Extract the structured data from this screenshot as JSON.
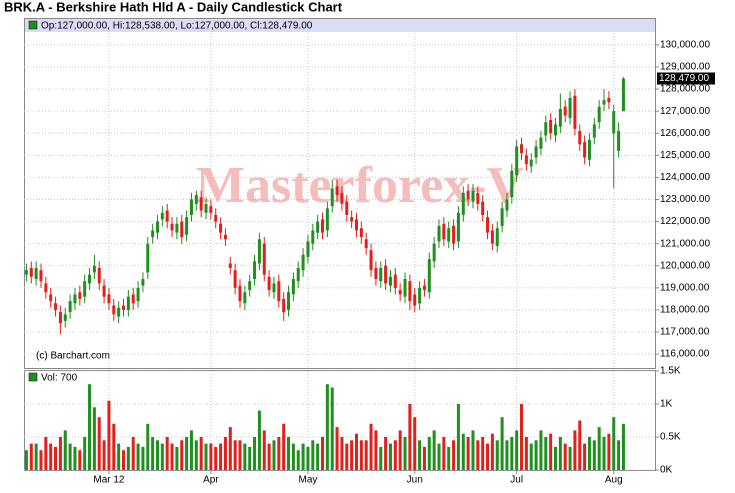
{
  "chart_data": [
    {
      "type": "candlestick",
      "title": "BRK.A - Berkshire Hath Hld A - Daily Candlestick Chart",
      "legend_text": "Op:127,000.00, Hi:128,538.00, Lo:127,000.00, Cl:128,479.00",
      "watermark": "Masterforex-V",
      "source": "(c) Barchart.com",
      "up_color": "#1f8f1f",
      "down_color": "#e0201a",
      "open": [
        119600,
        119900,
        119400,
        119800,
        119200,
        118700,
        118300,
        117900,
        117500,
        117900,
        118300,
        118800,
        118600,
        119200,
        119700,
        119900,
        119100,
        118700,
        118200,
        117700,
        118200,
        118000,
        118700,
        118400,
        119100,
        119700,
        121300,
        121500,
        122100,
        122500,
        121900,
        121500,
        122000,
        121400,
        122300,
        122800,
        123100,
        122400,
        122700,
        122300,
        121900,
        121400,
        120100,
        119800,
        119100,
        118300,
        118900,
        119400,
        120100,
        121000,
        119500,
        118800,
        119300,
        118500,
        118000,
        118700,
        119300,
        119800,
        120400,
        121000,
        121500,
        122100,
        121600,
        122700,
        123600,
        123300,
        122900,
        122200,
        122100,
        121700,
        121200,
        120700,
        119900,
        119300,
        120000,
        119100,
        119600,
        118900,
        118600,
        119300,
        118700,
        118300,
        119100,
        118800,
        120200,
        121100,
        121900,
        121100,
        121800,
        121100,
        122300,
        123400,
        122900,
        123300,
        122900,
        122200,
        121600,
        120900,
        121800,
        122500,
        123100,
        124100,
        125500,
        125000,
        124500,
        124900,
        125300,
        125900,
        126600,
        125900,
        126300,
        127200,
        126700,
        127700,
        126100,
        125600,
        124800,
        125800,
        126500,
        127300,
        127600,
        126000,
        125200,
        127000
      ],
      "high": [
        120100,
        120200,
        120200,
        120100,
        119500,
        119000,
        118600,
        118200,
        118100,
        118700,
        119000,
        119100,
        119600,
        119900,
        120500,
        120200,
        119400,
        119000,
        118500,
        118400,
        118500,
        118900,
        119000,
        119300,
        119700,
        121300,
        121900,
        122300,
        122700,
        122800,
        122200,
        122200,
        122300,
        122500,
        123300,
        123400,
        123400,
        123100,
        123000,
        122600,
        122200,
        121700,
        120400,
        120100,
        119400,
        119100,
        119600,
        120500,
        121500,
        121300,
        119800,
        119500,
        119600,
        118800,
        119100,
        119700,
        120200,
        120800,
        121400,
        121900,
        122300,
        122400,
        122900,
        123900,
        123900,
        123600,
        123200,
        122500,
        122400,
        122000,
        121500,
        121000,
        120200,
        120200,
        120300,
        119800,
        119900,
        119200,
        119700,
        119600,
        119000,
        119300,
        119400,
        120600,
        121300,
        122100,
        122200,
        122000,
        122100,
        122700,
        123600,
        123700,
        123700,
        123600,
        123200,
        122500,
        121900,
        122000,
        122900,
        123300,
        124600,
        125700,
        125800,
        125300,
        125100,
        125700,
        126100,
        126800,
        126900,
        126700,
        127800,
        127500,
        127900,
        128000,
        126400,
        125900,
        126000,
        126700,
        127500,
        128000,
        127900,
        127300,
        126500,
        128538
      ],
      "low": [
        119300,
        119200,
        119100,
        119000,
        118500,
        118100,
        117700,
        116900,
        117200,
        117600,
        118000,
        118200,
        118300,
        118900,
        119400,
        118900,
        118300,
        118000,
        117500,
        117400,
        117700,
        117700,
        118000,
        118100,
        118800,
        119400,
        121000,
        121200,
        121800,
        121700,
        121300,
        121200,
        121000,
        121100,
        122000,
        122500,
        122200,
        122100,
        122100,
        121700,
        121200,
        120900,
        119600,
        118700,
        118100,
        118000,
        118600,
        119100,
        119800,
        119300,
        118600,
        118500,
        118100,
        117500,
        117700,
        118400,
        119000,
        119500,
        120100,
        120700,
        121200,
        121200,
        121300,
        122400,
        122900,
        122500,
        122000,
        121700,
        121300,
        121000,
        120500,
        119500,
        119100,
        119000,
        118900,
        118800,
        118700,
        118400,
        118300,
        118000,
        117900,
        118000,
        118600,
        118500,
        119900,
        120800,
        120900,
        120800,
        120700,
        120800,
        122000,
        122700,
        122600,
        122500,
        122000,
        121200,
        120700,
        120600,
        121500,
        122200,
        122800,
        123800,
        124800,
        124300,
        124200,
        124600,
        125000,
        125600,
        125700,
        125600,
        126000,
        126500,
        126400,
        125900,
        125200,
        124600,
        124500,
        125500,
        126200,
        127000,
        127100,
        123500,
        124900,
        127000
      ],
      "close": [
        119800,
        119500,
        119900,
        119300,
        118800,
        118400,
        118000,
        117400,
        117800,
        118400,
        118700,
        118500,
        119300,
        119600,
        120000,
        119200,
        118600,
        118300,
        117800,
        118100,
        118000,
        118600,
        118300,
        119000,
        119400,
        121000,
        121600,
        122000,
        122400,
        122000,
        121600,
        121900,
        121300,
        122200,
        123000,
        123200,
        122500,
        122800,
        122400,
        122000,
        121500,
        121200,
        119900,
        119000,
        118400,
        118800,
        119300,
        120200,
        121200,
        119600,
        118900,
        119200,
        118400,
        117900,
        118800,
        119400,
        119900,
        120500,
        121100,
        121600,
        122000,
        121500,
        122600,
        123500,
        123200,
        122800,
        122300,
        122000,
        121600,
        121300,
        120800,
        119800,
        119400,
        119900,
        119200,
        119500,
        119000,
        118700,
        119400,
        118400,
        118200,
        119000,
        118900,
        120300,
        121000,
        121800,
        121200,
        121700,
        121000,
        122400,
        123300,
        123000,
        123400,
        122800,
        122300,
        121500,
        121000,
        121700,
        122600,
        123000,
        124300,
        125400,
        125100,
        124600,
        124800,
        125400,
        125800,
        126500,
        126000,
        126400,
        127100,
        126800,
        127600,
        126200,
        125500,
        124900,
        125700,
        126400,
        127200,
        127500,
        127400,
        127000,
        126100,
        128479
      ],
      "last_price": {
        "value": 128479,
        "label": "128,479.00"
      },
      "xlim": [
        -0.5,
        129.5
      ],
      "ylim": [
        115370,
        130540
      ],
      "yticks": [
        {
          "value": 116000,
          "label": "116,000.00"
        },
        {
          "value": 117000,
          "label": "117,000.00"
        },
        {
          "value": 118000,
          "label": "118,000.00"
        },
        {
          "value": 119000,
          "label": "119,000.00"
        },
        {
          "value": 120000,
          "label": "120,000.00"
        },
        {
          "value": 121000,
          "label": "121,000.00"
        },
        {
          "value": 122000,
          "label": "122,000.00"
        },
        {
          "value": 123000,
          "label": "123,000.00"
        },
        {
          "value": 124000,
          "label": "124,000.00"
        },
        {
          "value": 125000,
          "label": "125,000.00"
        },
        {
          "value": 126000,
          "label": "126,000.00"
        },
        {
          "value": 127000,
          "label": "127,000.00"
        },
        {
          "value": 128000,
          "label": "128,000.00"
        },
        {
          "value": 129000,
          "label": "129,000.00"
        },
        {
          "value": 130000,
          "label": "130,000.00"
        }
      ],
      "grid": true
    },
    {
      "type": "bar",
      "legend_text": "Vol: 700",
      "values": [
        300,
        400,
        400,
        300,
        500,
        400,
        350,
        500,
        600,
        400,
        350,
        300,
        500,
        1300,
        950,
        800,
        450,
        1050,
        700,
        400,
        300,
        350,
        500,
        400,
        350,
        700,
        500,
        450,
        400,
        500,
        400,
        350,
        450,
        500,
        600,
        450,
        500,
        400,
        400,
        350,
        400,
        500,
        650,
        450,
        450,
        400,
        350,
        500,
        900,
        600,
        400,
        450,
        500,
        700,
        500,
        400,
        300,
        400,
        350,
        450,
        400,
        500,
        1300,
        1250,
        650,
        500,
        400,
        450,
        550,
        450,
        450,
        700,
        600,
        350,
        500,
        400,
        450,
        600,
        500,
        1000,
        800,
        450,
        350,
        500,
        600,
        400,
        500,
        350,
        450,
        1000,
        550,
        500,
        600,
        450,
        500,
        400,
        550,
        450,
        800,
        450,
        500,
        600,
        1000,
        500,
        400,
        450,
        600,
        500,
        550,
        350,
        500,
        400,
        350,
        600,
        750,
        400,
        500,
        450,
        650,
        500,
        550,
        800,
        450,
        700
      ],
      "xlim": [
        -0.5,
        129.5
      ],
      "xticks": [
        {
          "value": 17,
          "label": "Mar 12"
        },
        {
          "value": 38,
          "label": "Apr"
        },
        {
          "value": 58,
          "label": "May"
        },
        {
          "value": 80,
          "label": "Jun"
        },
        {
          "value": 101,
          "label": "Jul"
        },
        {
          "value": 121,
          "label": "Aug"
        }
      ],
      "ylim": [
        0,
        1500
      ],
      "yticks": [
        {
          "value": 0,
          "label": "0K"
        },
        {
          "value": 500,
          "label": "0.5K"
        },
        {
          "value": 1000,
          "label": "1K"
        },
        {
          "value": 1500,
          "label": "1.5K"
        }
      ],
      "grid": true
    }
  ]
}
